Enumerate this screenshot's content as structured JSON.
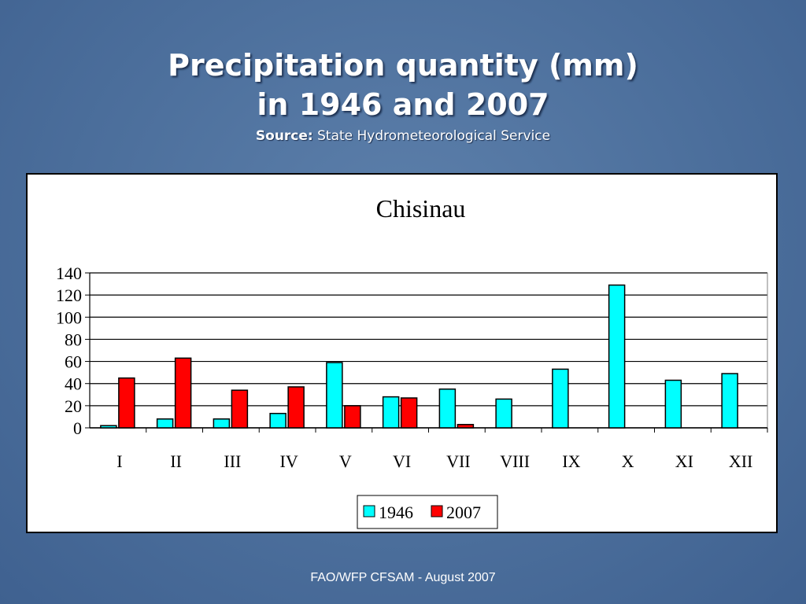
{
  "slide": {
    "title_line1": "Precipitation quantity (mm)",
    "title_line2": "in 1946 and 2007",
    "source_label": "Source:",
    "source_text": "State Hydrometeorological Service",
    "footer": "FAO/WFP CFSAM - August 2007"
  },
  "chart_data": {
    "type": "bar",
    "title": "Chisinau",
    "categories": [
      "I",
      "II",
      "III",
      "IV",
      "V",
      "VI",
      "VII",
      "VIII",
      "IX",
      "X",
      "XI",
      "XII"
    ],
    "series": [
      {
        "name": "1946",
        "color": "#00ffff",
        "values": [
          2,
          8,
          8,
          13,
          59,
          28,
          35,
          26,
          53,
          129,
          43,
          49
        ]
      },
      {
        "name": "2007",
        "color": "#ff0000",
        "values": [
          45,
          63,
          34,
          37,
          20,
          27,
          3,
          0,
          0,
          0,
          0,
          0
        ]
      }
    ],
    "ylim": [
      0,
      140
    ],
    "yticks": [
      0,
      20,
      40,
      60,
      80,
      100,
      120,
      140
    ],
    "grid": true,
    "legend": "bottom-center"
  }
}
